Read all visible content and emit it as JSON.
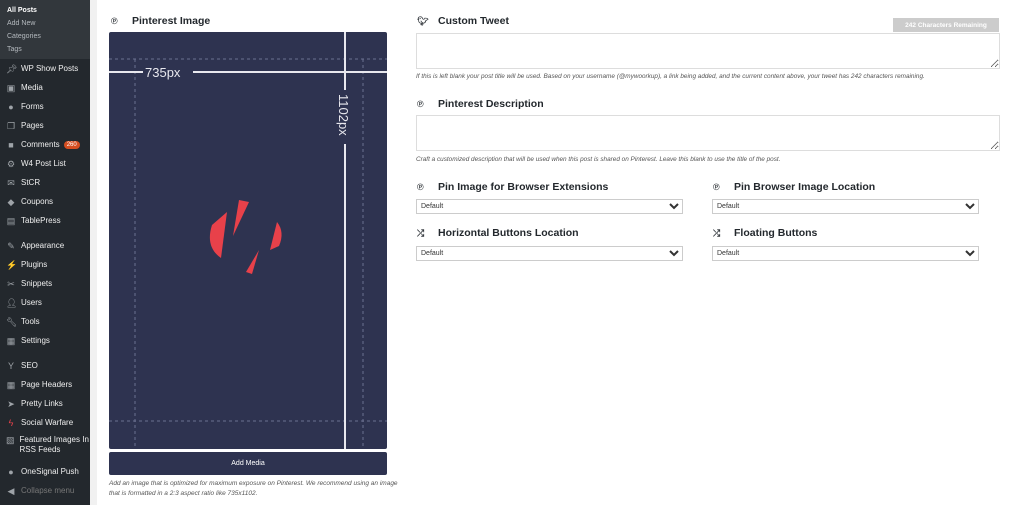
{
  "sidebar": {
    "submenu": [
      "All Posts",
      "Add New",
      "Categories",
      "Tags"
    ],
    "items": [
      {
        "label": "WP Show Posts",
        "icon": "pin-icon"
      },
      {
        "label": "Media",
        "icon": "media-icon"
      },
      {
        "label": "Forms",
        "icon": "forms-icon"
      },
      {
        "label": "Pages",
        "icon": "pages-icon"
      },
      {
        "label": "Comments",
        "icon": "comment-icon",
        "badge": "260"
      },
      {
        "label": "W4 Post List",
        "icon": "gear-icon"
      },
      {
        "label": "StCR",
        "icon": "mail-icon"
      },
      {
        "label": "Coupons",
        "icon": "tag-icon"
      },
      {
        "label": "TablePress",
        "icon": "table-icon"
      },
      {
        "label": "Appearance",
        "icon": "brush-icon"
      },
      {
        "label": "Plugins",
        "icon": "plugin-icon"
      },
      {
        "label": "Snippets",
        "icon": "scissors-icon"
      },
      {
        "label": "Users",
        "icon": "user-icon"
      },
      {
        "label": "Tools",
        "icon": "wrench-icon"
      },
      {
        "label": "Settings",
        "icon": "settings-icon"
      },
      {
        "label": "SEO",
        "icon": "seo-icon"
      },
      {
        "label": "Page Headers",
        "icon": "grid-icon"
      },
      {
        "label": "Pretty Links",
        "icon": "link-icon"
      },
      {
        "label": "Social Warfare",
        "icon": "social-warfare-icon"
      },
      {
        "label": "Featured Images In RSS Feeds",
        "icon": "image-icon"
      },
      {
        "label": "OneSignal Push",
        "icon": "bell-icon"
      },
      {
        "label": "Collapse menu",
        "icon": "collapse-icon"
      }
    ]
  },
  "pinterest_image": {
    "title": "Pinterest Image",
    "width_label": "735px",
    "height_label": "1102px",
    "button": "Add Media",
    "note": "Add an image that is optimized for maximum exposure on Pinterest. We recommend using an image that is formatted in a 2:3 aspect ratio like 735x1102."
  },
  "custom_tweet": {
    "title": "Custom Tweet",
    "remaining": "242 Characters Remaining",
    "value": "",
    "note": "If this is left blank your post title will be used. Based on your username (@mywoorkup), a link being added, and the current content above, your tweet has 242 characters remaining."
  },
  "pinterest_description": {
    "title": "Pinterest Description",
    "value": "",
    "note": "Craft a customized description that will be used when this post is shared on Pinterest. Leave this blank to use the title of the post."
  },
  "selects": [
    {
      "title": "Pin Image for Browser Extensions",
      "value": "Default"
    },
    {
      "title": "Pin Browser Image Location",
      "value": "Default"
    },
    {
      "title": "Horizontal Buttons Location",
      "value": "Default"
    },
    {
      "title": "Floating Buttons",
      "value": "Default"
    }
  ],
  "colors": {
    "panel": "#2e3350",
    "logo": "#e8414a",
    "sidebar": "#23282d"
  }
}
